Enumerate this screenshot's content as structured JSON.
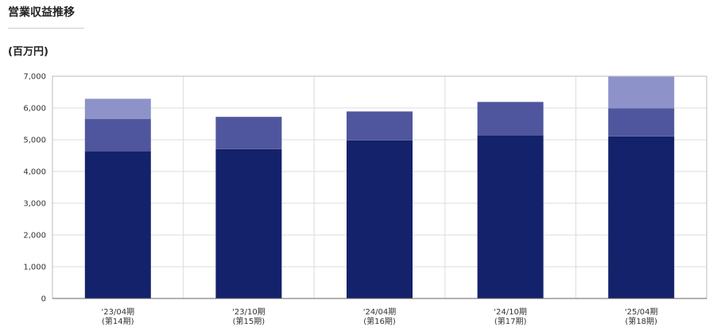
{
  "header": {
    "title": "営業収益推移",
    "unit": "(百万円)"
  },
  "chart_data": {
    "type": "bar",
    "stacked": true,
    "categories": [
      [
        "'23/04期",
        "(第14期)"
      ],
      [
        "'23/10期",
        "(第15期)"
      ],
      [
        "'24/04期",
        "(第16期)"
      ],
      [
        "'24/10期",
        "(第17期)"
      ],
      [
        "'25/04期",
        "(第18期)"
      ]
    ],
    "series": [
      {
        "color": "#14216b",
        "values": [
          4650,
          4720,
          4990,
          5150,
          5120
        ]
      },
      {
        "color": "#4f569e",
        "values": [
          1020,
          1000,
          900,
          1040,
          880
        ]
      },
      {
        "color": "#8d93c9",
        "values": [
          620,
          0,
          0,
          0,
          1000
        ]
      }
    ],
    "ylim": [
      0,
      7000
    ],
    "yticks": [
      "0",
      "1,000",
      "2,000",
      "3,000",
      "4,000",
      "5,000",
      "6,000",
      "7,000"
    ],
    "ytick_values": [
      0,
      1000,
      2000,
      3000,
      4000,
      5000,
      6000,
      7000
    ],
    "grid": true
  }
}
